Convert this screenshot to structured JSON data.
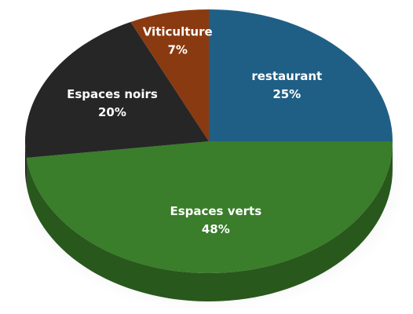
{
  "chart_data": {
    "type": "pie",
    "categories": [
      "restaurant",
      "Espaces verts",
      "Espaces noirs",
      "Viticulture"
    ],
    "values": [
      25,
      48,
      20,
      7
    ],
    "value_labels": [
      "25%",
      "48%",
      "20%",
      "7%"
    ],
    "colors": [
      "#1f5f86",
      "#3a7d2a",
      "#262626",
      "#8a3a10"
    ]
  }
}
